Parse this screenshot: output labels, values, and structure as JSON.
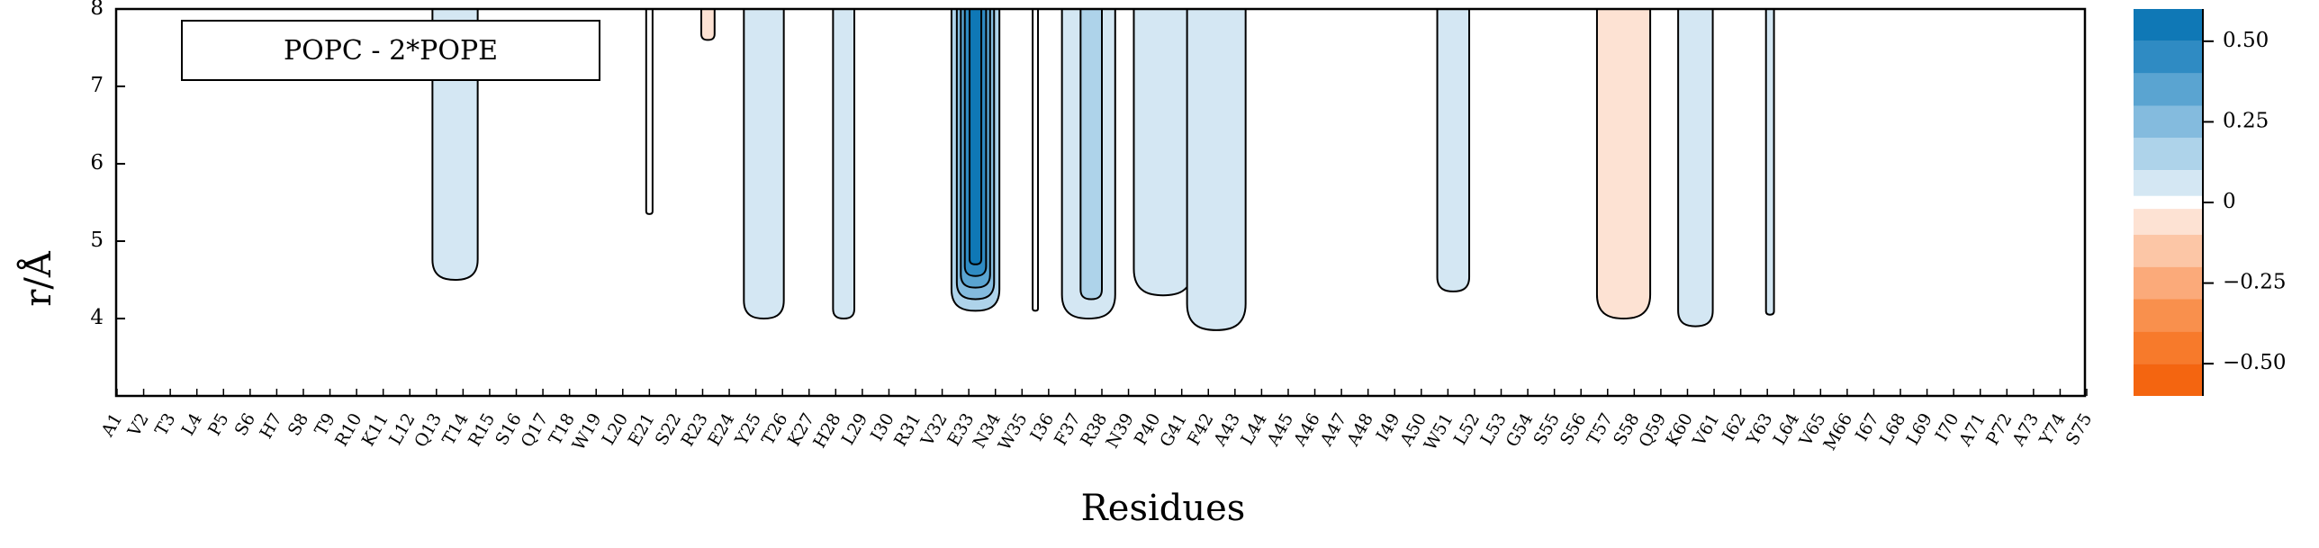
{
  "chart_data": {
    "type": "contour",
    "legend_label": "POPC - 2*POPE",
    "xlabel": "Residues",
    "ylabel": "r/Å",
    "x_categories": [
      "A1",
      "V2",
      "T3",
      "L4",
      "P5",
      "S6",
      "H7",
      "S8",
      "T9",
      "R10",
      "K11",
      "L12",
      "Q13",
      "T14",
      "R15",
      "S16",
      "Q17",
      "T18",
      "W19",
      "L20",
      "E21",
      "S22",
      "R23",
      "E24",
      "Y25",
      "T26",
      "K27",
      "H28",
      "L29",
      "I30",
      "R31",
      "V32",
      "E33",
      "N34",
      "W35",
      "I36",
      "F37",
      "R38",
      "N39",
      "P40",
      "G41",
      "F42",
      "A43",
      "L44",
      "A45",
      "A46",
      "A47",
      "A48",
      "I49",
      "A50",
      "W51",
      "L52",
      "L53",
      "G54",
      "S55",
      "S56",
      "T57",
      "S58",
      "Q59",
      "K60",
      "V61",
      "I62",
      "Y63",
      "L64",
      "V65",
      "M66",
      "I67",
      "L68",
      "L69",
      "I70",
      "A71",
      "P72",
      "A73",
      "Y74",
      "S75"
    ],
    "ylim": [
      3,
      8
    ],
    "yticks": [
      "4",
      "5",
      "6",
      "7",
      "8"
    ],
    "colorbar": {
      "ticks": [
        "0.50",
        "0.25",
        "0",
        "−0.25",
        "−0.50"
      ],
      "tick_values": [
        0.5,
        0.25,
        0,
        -0.25,
        -0.5
      ],
      "range": [
        -0.6,
        0.6
      ],
      "levels": [
        {
          "lo": 0.5,
          "hi": 0.6,
          "color": "#0f78b6"
        },
        {
          "lo": 0.4,
          "hi": 0.5,
          "color": "#2f8bc3"
        },
        {
          "lo": 0.3,
          "hi": 0.4,
          "color": "#5aa4d1"
        },
        {
          "lo": 0.2,
          "hi": 0.3,
          "color": "#84bbde"
        },
        {
          "lo": 0.1,
          "hi": 0.2,
          "color": "#aed3ea"
        },
        {
          "lo": 0.02,
          "hi": 0.1,
          "color": "#d4e7f3"
        },
        {
          "lo": -0.02,
          "hi": 0.02,
          "color": "#ffffff"
        },
        {
          "lo": -0.1,
          "hi": -0.02,
          "color": "#fde2d3"
        },
        {
          "lo": -0.2,
          "hi": -0.1,
          "color": "#fcc6a6"
        },
        {
          "lo": -0.3,
          "hi": -0.2,
          "color": "#fbaa7a"
        },
        {
          "lo": -0.4,
          "hi": -0.3,
          "color": "#f9904d"
        },
        {
          "lo": -0.5,
          "hi": -0.4,
          "color": "#f77a2b"
        },
        {
          "lo": -0.6,
          "hi": -0.5,
          "color": "#f46510"
        }
      ]
    },
    "features": [
      {
        "name": "region-q13-r15",
        "center": 13.7,
        "halfwidth": 0.85,
        "ymin": 4.5,
        "level": 0.05
      },
      {
        "name": "region-e21",
        "center": 21.0,
        "halfwidth": 0.12,
        "ymin": 5.35,
        "level": 0.0
      },
      {
        "name": "region-r23",
        "center": 23.2,
        "halfwidth": 0.25,
        "ymin": 7.6,
        "level": -0.05
      },
      {
        "name": "region-y25",
        "center": 25.3,
        "halfwidth": 0.75,
        "ymin": 4.0,
        "level": 0.05
      },
      {
        "name": "region-h28",
        "center": 28.3,
        "halfwidth": 0.4,
        "ymin": 4.0,
        "level": 0.05
      },
      {
        "name": "region-e33-outer",
        "center": 33.25,
        "halfwidth": 0.9,
        "ymin": 4.1,
        "level": 0.15
      },
      {
        "name": "region-e33-mid1",
        "center": 33.25,
        "halfwidth": 0.7,
        "ymin": 4.25,
        "level": 0.25
      },
      {
        "name": "region-e33-mid2",
        "center": 33.25,
        "halfwidth": 0.55,
        "ymin": 4.4,
        "level": 0.35
      },
      {
        "name": "region-e33-mid3",
        "center": 33.25,
        "halfwidth": 0.4,
        "ymin": 4.55,
        "level": 0.45
      },
      {
        "name": "region-e33-core",
        "center": 33.25,
        "halfwidth": 0.22,
        "ymin": 4.7,
        "level": 0.55
      },
      {
        "name": "region-w35",
        "center": 35.5,
        "halfwidth": 0.1,
        "ymin": 4.1,
        "level": 0.0
      },
      {
        "name": "region-f37-outer",
        "center": 37.5,
        "halfwidth": 1.0,
        "ymin": 4.0,
        "level": 0.05
      },
      {
        "name": "region-f37-inner",
        "center": 37.6,
        "halfwidth": 0.4,
        "ymin": 4.25,
        "level": 0.15
      },
      {
        "name": "region-p40",
        "center": 40.3,
        "halfwidth": 1.1,
        "ymin": 4.3,
        "level": 0.05
      },
      {
        "name": "region-f42",
        "center": 42.3,
        "halfwidth": 1.1,
        "ymin": 3.85,
        "level": 0.05
      },
      {
        "name": "region-w51",
        "center": 51.2,
        "halfwidth": 0.6,
        "ymin": 4.35,
        "level": 0.05
      },
      {
        "name": "region-t57",
        "center": 57.6,
        "halfwidth": 1.0,
        "ymin": 4.0,
        "level": -0.05
      },
      {
        "name": "region-k60",
        "center": 60.3,
        "halfwidth": 0.65,
        "ymin": 3.9,
        "level": 0.05
      },
      {
        "name": "region-y63",
        "center": 63.1,
        "halfwidth": 0.15,
        "ymin": 4.05,
        "level": 0.05
      }
    ]
  }
}
